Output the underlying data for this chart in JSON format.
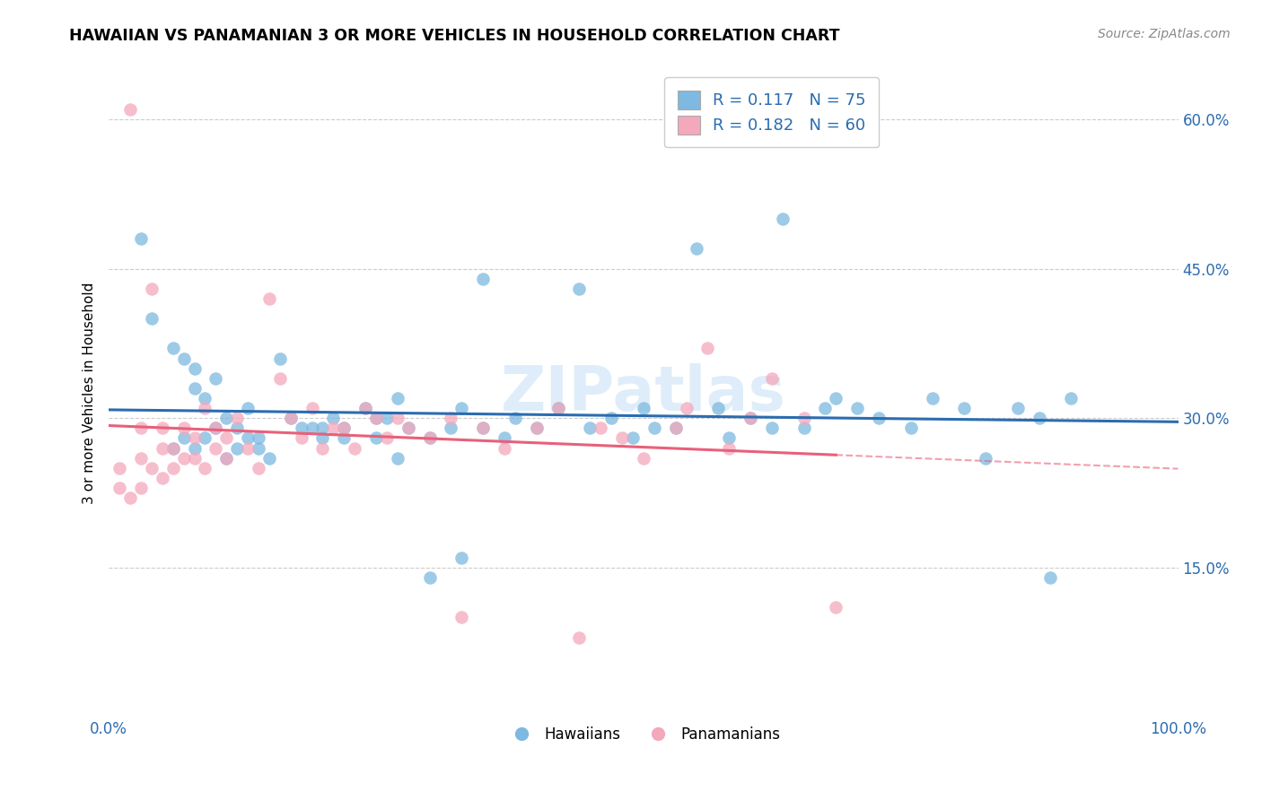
{
  "title": "HAWAIIAN VS PANAMANIAN 3 OR MORE VEHICLES IN HOUSEHOLD CORRELATION CHART",
  "source": "Source: ZipAtlas.com",
  "ylabel": "3 or more Vehicles in Household",
  "xmin": 0.0,
  "xmax": 100.0,
  "ymin": 0.0,
  "ymax": 65.0,
  "yticks": [
    15.0,
    30.0,
    45.0,
    60.0
  ],
  "ytick_labels": [
    "15.0%",
    "30.0%",
    "45.0%",
    "60.0%"
  ],
  "watermark": "ZIPatlas",
  "hawaiian_R": 0.117,
  "hawaiian_N": 75,
  "panamanian_R": 0.182,
  "panamanian_N": 60,
  "blue_color": "#7db9e0",
  "pink_color": "#f4a8bc",
  "blue_line_color": "#2b6cb0",
  "pink_line_color": "#e8607a",
  "hawaiian_x": [
    3,
    4,
    6,
    7,
    8,
    8,
    9,
    10,
    11,
    12,
    13,
    14,
    16,
    17,
    18,
    19,
    20,
    21,
    22,
    24,
    25,
    26,
    27,
    28,
    30,
    32,
    33,
    35,
    37,
    38,
    40,
    42,
    44,
    45,
    47,
    49,
    50,
    51,
    53,
    55,
    57,
    58,
    60,
    62,
    63,
    65,
    67,
    68,
    70,
    72,
    75,
    77,
    80,
    82,
    85,
    87,
    88,
    90,
    6,
    7,
    8,
    9,
    10,
    11,
    12,
    13,
    14,
    15,
    20,
    22,
    25,
    27,
    30,
    33,
    35
  ],
  "hawaiian_y": [
    48,
    40,
    37,
    36,
    35,
    33,
    32,
    34,
    30,
    29,
    31,
    28,
    36,
    30,
    29,
    29,
    28,
    30,
    29,
    31,
    28,
    30,
    32,
    29,
    28,
    29,
    31,
    44,
    28,
    30,
    29,
    31,
    43,
    29,
    30,
    28,
    31,
    29,
    29,
    47,
    31,
    28,
    30,
    29,
    50,
    29,
    31,
    32,
    31,
    30,
    29,
    32,
    31,
    26,
    31,
    30,
    14,
    32,
    27,
    28,
    27,
    28,
    29,
    26,
    27,
    28,
    27,
    26,
    29,
    28,
    30,
    26,
    14,
    16,
    29
  ],
  "panamanian_x": [
    1,
    1,
    2,
    2,
    3,
    3,
    3,
    4,
    4,
    5,
    5,
    5,
    6,
    6,
    7,
    7,
    8,
    8,
    9,
    9,
    10,
    10,
    11,
    11,
    12,
    13,
    14,
    15,
    16,
    17,
    18,
    19,
    20,
    21,
    22,
    23,
    24,
    25,
    26,
    27,
    28,
    30,
    32,
    33,
    35,
    37,
    40,
    42,
    44,
    46,
    48,
    50,
    53,
    54,
    56,
    58,
    60,
    62,
    65,
    68
  ],
  "panamanian_y": [
    25,
    23,
    22,
    61,
    23,
    26,
    29,
    43,
    25,
    24,
    27,
    29,
    25,
    27,
    26,
    29,
    26,
    28,
    25,
    31,
    27,
    29,
    26,
    28,
    30,
    27,
    25,
    42,
    34,
    30,
    28,
    31,
    27,
    29,
    29,
    27,
    31,
    30,
    28,
    30,
    29,
    28,
    30,
    10,
    29,
    27,
    29,
    31,
    8,
    29,
    28,
    26,
    29,
    31,
    37,
    27,
    30,
    34,
    30,
    11
  ]
}
